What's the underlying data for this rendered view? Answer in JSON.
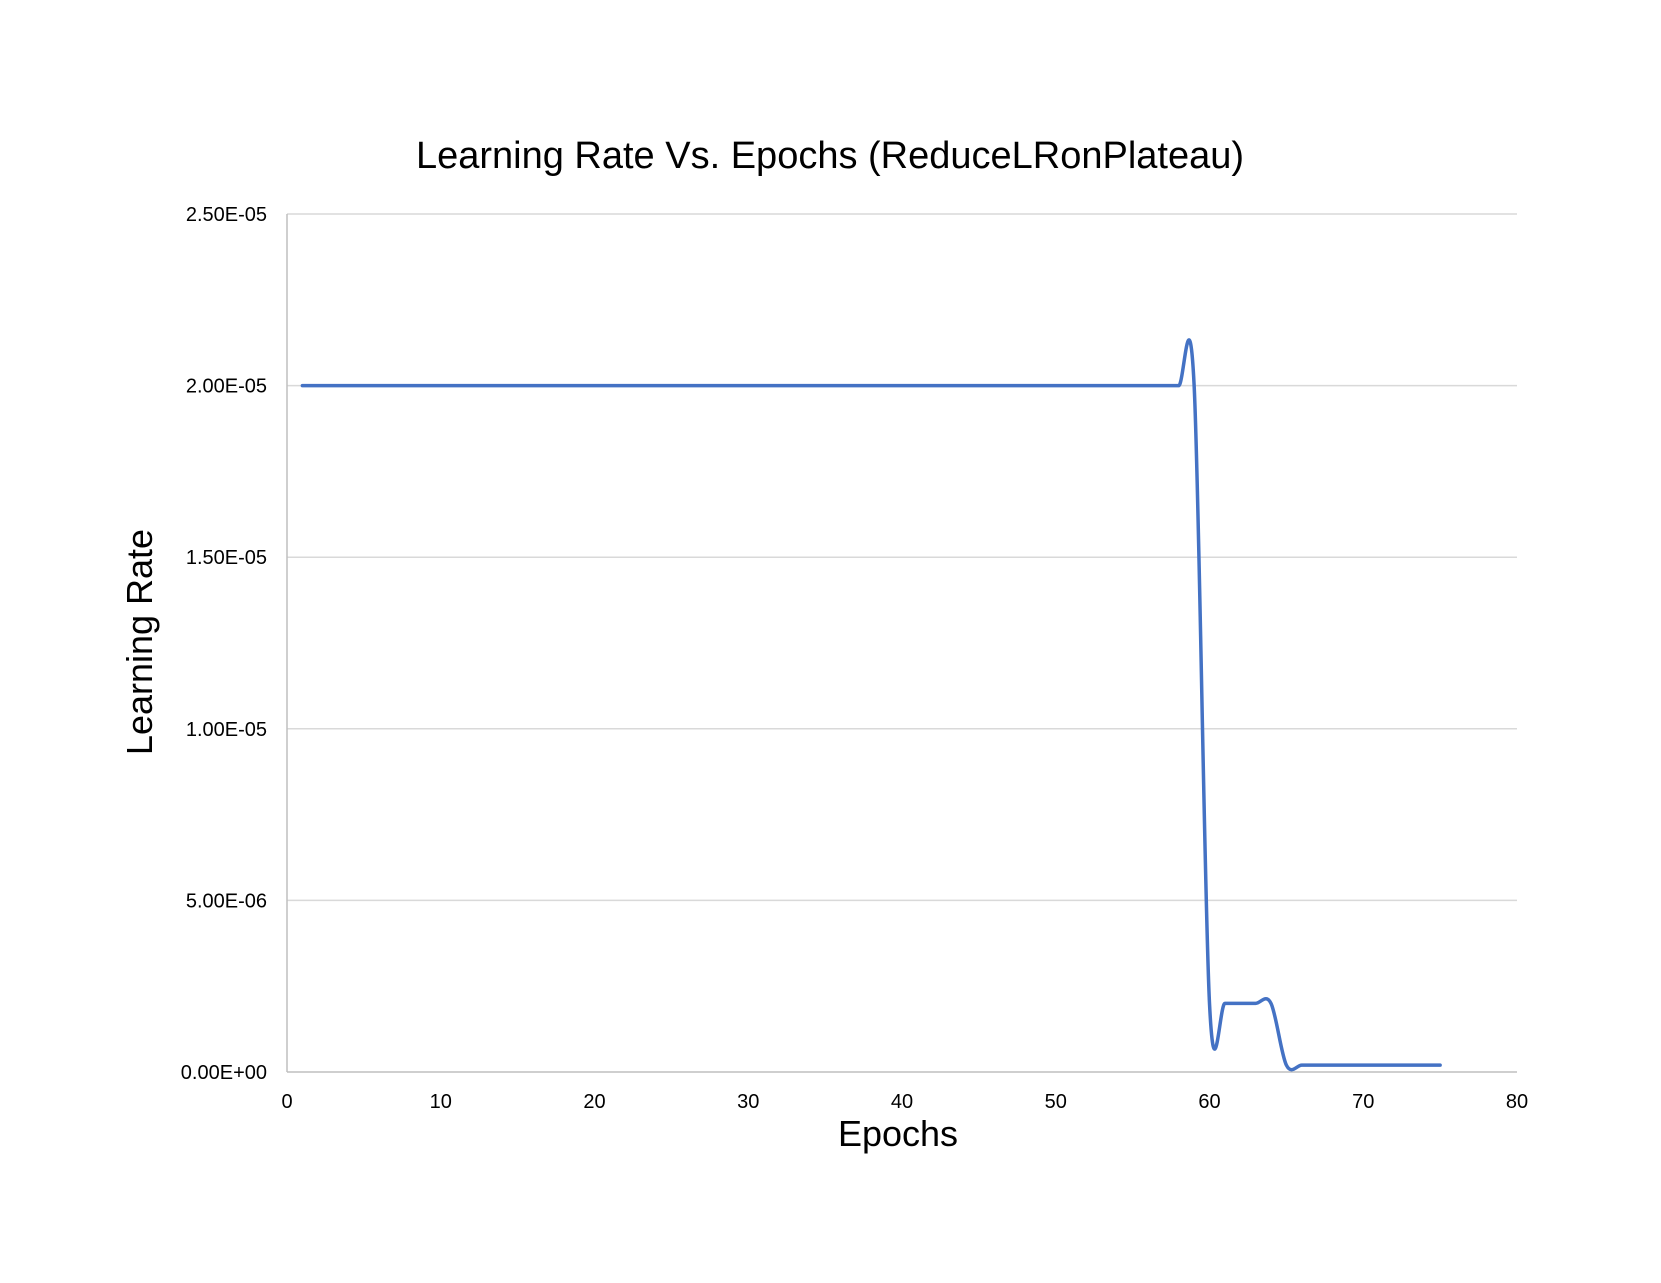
{
  "chart_data": {
    "type": "line",
    "title": "Learning Rate Vs. Epochs (ReduceLRonPlateau)",
    "xlabel": "Epochs",
    "ylabel": "Learning Rate",
    "xlim": [
      0,
      80
    ],
    "ylim": [
      0,
      2.5e-05
    ],
    "x_ticks": [
      0,
      10,
      20,
      30,
      40,
      50,
      60,
      70,
      80
    ],
    "x_tick_labels": [
      "0",
      "10",
      "20",
      "30",
      "40",
      "50",
      "60",
      "70",
      "80"
    ],
    "y_ticks": [
      0,
      5e-06,
      1e-05,
      1.5e-05,
      2e-05,
      2.5e-05
    ],
    "y_tick_labels": [
      "0.00E+00",
      "5.00E-06",
      "1.00E-05",
      "1.50E-05",
      "2.00E-05",
      "2.50E-05"
    ],
    "grid": true,
    "legend": "none",
    "series": [
      {
        "color": "#4472c4",
        "x": [
          1,
          10,
          20,
          30,
          40,
          50,
          57,
          58,
          59,
          60,
          61,
          62,
          63,
          64,
          65,
          66,
          67,
          70,
          75
        ],
        "y": [
          2e-05,
          2e-05,
          2e-05,
          2e-05,
          2e-05,
          2e-05,
          2e-05,
          2e-05,
          2e-05,
          2e-06,
          2e-06,
          2e-06,
          2e-06,
          2e-06,
          2e-07,
          2e-07,
          2e-07,
          2e-07,
          2e-07
        ]
      }
    ]
  }
}
